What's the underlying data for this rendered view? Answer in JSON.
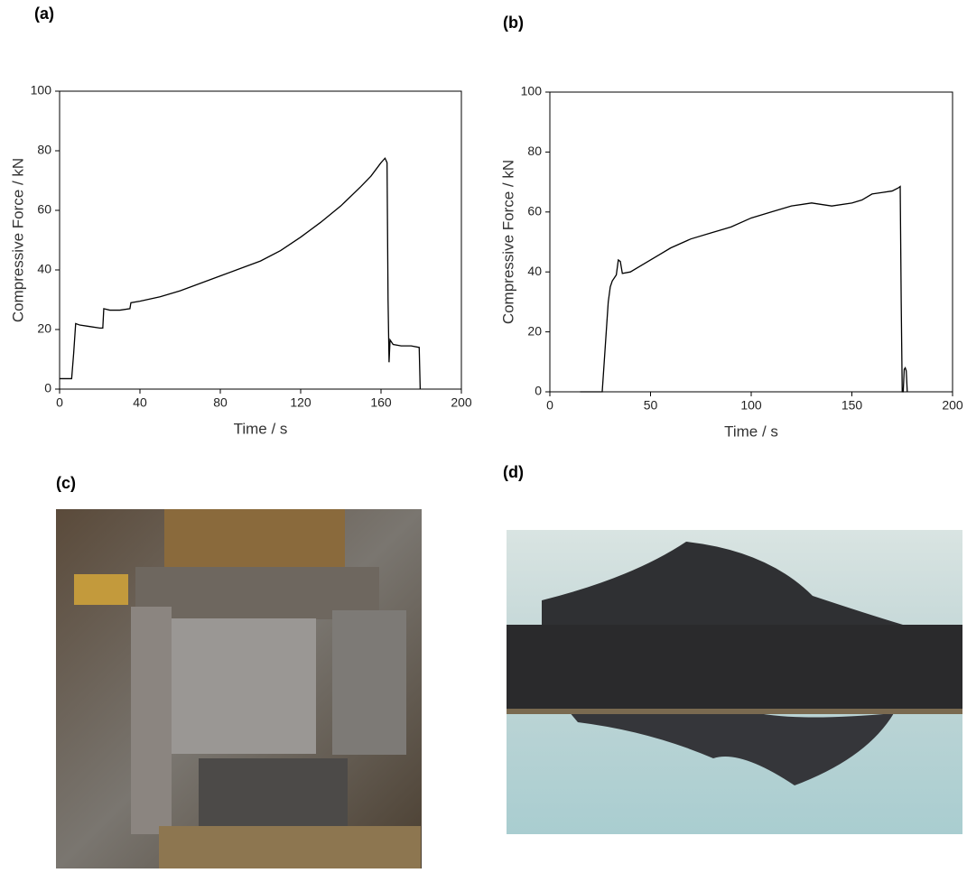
{
  "chart_data": [
    {
      "type": "line",
      "title": "(a)",
      "xlabel": "Time / s",
      "ylabel": "Compressive Force / kN",
      "x": [
        0,
        6,
        7,
        8,
        10,
        15,
        20,
        21.5,
        22,
        25,
        30,
        35,
        35.5,
        40,
        50,
        60,
        70,
        80,
        90,
        100,
        110,
        120,
        130,
        140,
        150,
        155,
        160,
        162,
        163,
        163.5,
        164,
        164.5,
        166,
        170,
        175,
        179,
        179.5
      ],
      "values": [
        3.5,
        3.5,
        12,
        22,
        21.5,
        21,
        20.5,
        20.5,
        27,
        26.5,
        26.5,
        27,
        29,
        29.5,
        31,
        33,
        35.5,
        38,
        40.5,
        43,
        46.5,
        51,
        56,
        61.5,
        68,
        71.5,
        76,
        77.5,
        76,
        30,
        9,
        16.5,
        15,
        14.5,
        14.5,
        14,
        0
      ],
      "color": "#000000",
      "xlim": [
        0,
        200
      ],
      "xticks": [
        0,
        40,
        80,
        120,
        160,
        200
      ],
      "ylim": [
        0,
        100
      ],
      "yticks": [
        0,
        20,
        40,
        60,
        80,
        100
      ]
    },
    {
      "type": "line",
      "title": "(b)",
      "xlabel": "Time / s",
      "ylabel": "Compressive Force / kN",
      "x": [
        15,
        20,
        25,
        26,
        27,
        28,
        29,
        30,
        31,
        32,
        33,
        34,
        35,
        36,
        40,
        45,
        50,
        55,
        60,
        70,
        80,
        90,
        100,
        110,
        120,
        130,
        140,
        150,
        155,
        160,
        165,
        170,
        173,
        174,
        174.5,
        175,
        175.5,
        176,
        176.5,
        177,
        177.5
      ],
      "values": [
        0,
        0,
        0,
        0,
        10,
        20,
        30,
        35,
        37,
        38,
        39,
        44,
        43.5,
        39.5,
        40,
        42,
        44,
        46,
        48,
        51,
        53,
        55,
        58,
        60,
        62,
        63,
        62,
        63,
        64,
        66,
        66.5,
        67,
        68,
        68.5,
        30,
        0,
        0,
        7.5,
        8,
        7,
        0
      ],
      "color": "#000000",
      "xlim": [
        0,
        200
      ],
      "xticks": [
        0,
        50,
        100,
        150,
        200
      ],
      "ylim": [
        0,
        100
      ],
      "yticks": [
        0,
        20,
        40,
        60,
        80,
        100
      ]
    }
  ],
  "photo_labels": [
    "(c)",
    "(d)"
  ]
}
